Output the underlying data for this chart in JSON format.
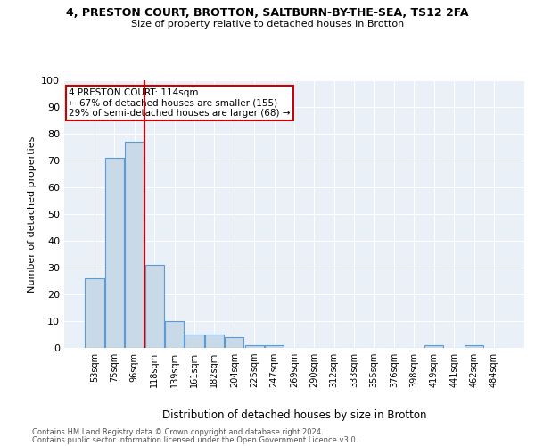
{
  "title1": "4, PRESTON COURT, BROTTON, SALTBURN-BY-THE-SEA, TS12 2FA",
  "title2": "Size of property relative to detached houses in Brotton",
  "xlabel": "Distribution of detached houses by size in Brotton",
  "ylabel": "Number of detached properties",
  "bar_labels": [
    "53sqm",
    "75sqm",
    "96sqm",
    "118sqm",
    "139sqm",
    "161sqm",
    "182sqm",
    "204sqm",
    "225sqm",
    "247sqm",
    "269sqm",
    "290sqm",
    "312sqm",
    "333sqm",
    "355sqm",
    "376sqm",
    "398sqm",
    "419sqm",
    "441sqm",
    "462sqm",
    "484sqm"
  ],
  "bar_values": [
    26,
    71,
    77,
    31,
    10,
    5,
    5,
    4,
    1,
    1,
    0,
    0,
    0,
    0,
    0,
    0,
    0,
    1,
    0,
    1,
    0
  ],
  "bar_color": "#c8d9e8",
  "bar_edge_color": "#5b9bd5",
  "background_color": "#eaf0f8",
  "grid_color": "#ffffff",
  "vline_x": 2.5,
  "annotation_text": "4 PRESTON COURT: 114sqm\n← 67% of detached houses are smaller (155)\n29% of semi-detached houses are larger (68) →",
  "annotation_box_color": "#ffffff",
  "annotation_box_edge": "#cc0000",
  "vline_color": "#cc0000",
  "ylim": [
    0,
    100
  ],
  "yticks": [
    0,
    10,
    20,
    30,
    40,
    50,
    60,
    70,
    80,
    90,
    100
  ],
  "footnote1": "Contains HM Land Registry data © Crown copyright and database right 2024.",
  "footnote2": "Contains public sector information licensed under the Open Government Licence v3.0."
}
